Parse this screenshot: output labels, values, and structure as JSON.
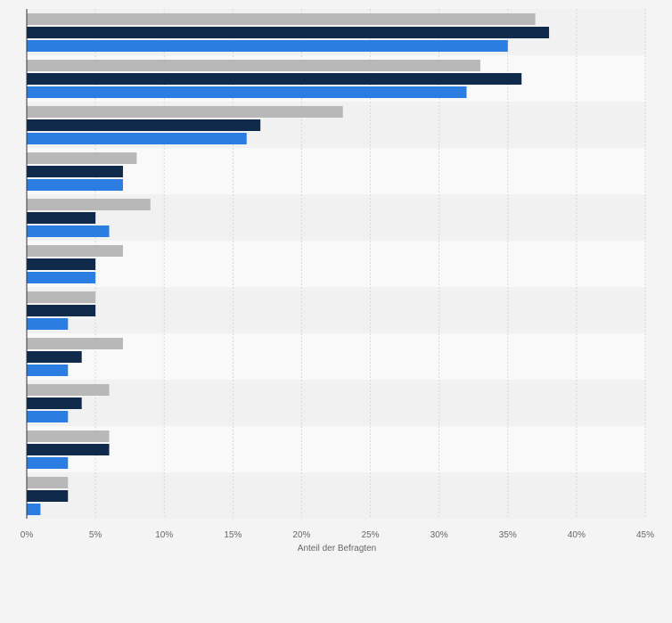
{
  "chart_data": {
    "type": "bar",
    "orientation": "horizontal",
    "title": "",
    "xlabel": "Anteil der Befragten",
    "ylabel": "",
    "xlim": [
      0,
      45
    ],
    "x_ticks": [
      "0%",
      "5%",
      "10%",
      "15%",
      "20%",
      "25%",
      "30%",
      "35%",
      "40%",
      "45%"
    ],
    "grid": true,
    "legend": "none",
    "categories": [
      "",
      "",
      "",
      "",
      "",
      "",
      "",
      "",
      "",
      "",
      ""
    ],
    "series": [
      {
        "color": "#b8b8b8",
        "values": [
          37,
          33,
          23,
          8,
          9,
          7,
          5,
          7,
          6,
          6,
          3
        ]
      },
      {
        "color": "#0f2a4a",
        "values": [
          38,
          36,
          17,
          7,
          5,
          5,
          5,
          4,
          4,
          6,
          3
        ]
      },
      {
        "color": "#2b7de1",
        "values": [
          35,
          32,
          16,
          7,
          6,
          5,
          3,
          3,
          3,
          3,
          1
        ]
      }
    ]
  }
}
